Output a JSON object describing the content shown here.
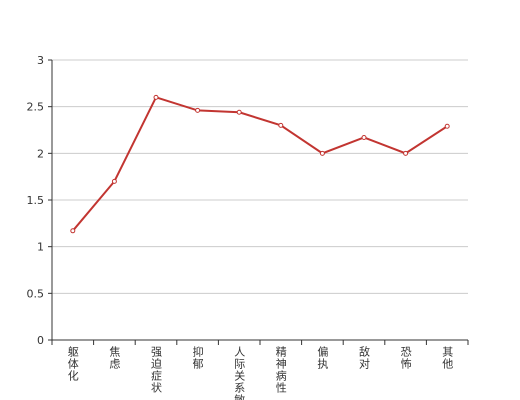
{
  "chart_data": {
    "type": "line",
    "categories": [
      "躯体化",
      "焦虑",
      "强迫症状",
      "抑郁",
      "人际关系敏感",
      "精神病性",
      "偏执",
      "敌对",
      "恐怖",
      "其他"
    ],
    "series": [
      {
        "color": "#c23531",
        "values": [
          1.17,
          1.7,
          2.6,
          2.46,
          2.44,
          2.3,
          2.0,
          2.17,
          2.0,
          2.29
        ]
      }
    ],
    "ylim": [
      0,
      3
    ],
    "yticks": [
      0,
      0.5,
      1,
      1.5,
      2,
      2.5,
      3
    ],
    "grid": true
  }
}
